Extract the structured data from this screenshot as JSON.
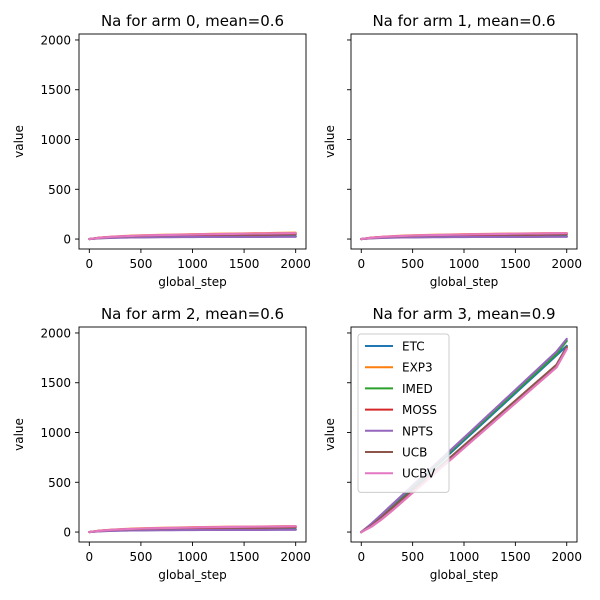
{
  "colors": {
    "ETC": "#1f77b4",
    "EXP3": "#ff7f0e",
    "IMED": "#2ca02c",
    "MOSS": "#d62728",
    "NPTS": "#9467bd",
    "UCB": "#8c564b",
    "UCBV": "#e377c2"
  },
  "chart_data": [
    {
      "type": "line",
      "title": "Na for arm 0, mean=0.6",
      "xlabel": "global_step",
      "ylabel": "value",
      "xlim": [
        -100,
        2100
      ],
      "ylim": [
        -100,
        2060
      ],
      "xticks": [
        0,
        500,
        1000,
        1500,
        2000
      ],
      "yticks": [
        0,
        500,
        1000,
        1500,
        2000
      ],
      "show_ytick_labels": true,
      "grid": false,
      "legend": null,
      "x": [
        0,
        100,
        200,
        300,
        400,
        500,
        600,
        700,
        800,
        900,
        1000,
        1100,
        1200,
        1300,
        1400,
        1500,
        1600,
        1700,
        1800,
        1900,
        2000
      ],
      "series": [
        {
          "name": "ETC",
          "values": [
            0,
            10,
            15,
            18,
            20,
            22,
            23,
            24,
            25,
            25,
            26,
            26,
            27,
            27,
            27,
            28,
            28,
            28,
            29,
            29,
            29
          ]
        },
        {
          "name": "EXP3",
          "values": [
            0,
            14,
            22,
            28,
            33,
            37,
            40,
            42,
            44,
            46,
            48,
            50,
            52,
            53,
            55,
            56,
            58,
            59,
            61,
            62,
            64
          ]
        },
        {
          "name": "IMED",
          "values": [
            0,
            9,
            13,
            16,
            18,
            19,
            20,
            21,
            22,
            22,
            23,
            23,
            24,
            24,
            24,
            25,
            25,
            25,
            25,
            26,
            26
          ]
        },
        {
          "name": "MOSS",
          "values": [
            0,
            12,
            19,
            24,
            28,
            31,
            33,
            35,
            37,
            38,
            40,
            41,
            42,
            43,
            44,
            45,
            46,
            47,
            48,
            49,
            50
          ]
        },
        {
          "name": "NPTS",
          "values": [
            0,
            8,
            12,
            14,
            16,
            17,
            18,
            19,
            19,
            20,
            20,
            21,
            21,
            21,
            22,
            22,
            22,
            22,
            23,
            23,
            23
          ]
        },
        {
          "name": "UCB",
          "values": [
            0,
            13,
            20,
            25,
            29,
            32,
            35,
            37,
            39,
            41,
            43,
            44,
            46,
            47,
            48,
            49,
            50,
            51,
            52,
            53,
            54
          ]
        },
        {
          "name": "UCBV",
          "values": [
            0,
            13,
            21,
            27,
            31,
            35,
            38,
            40,
            42,
            44,
            46,
            48,
            49,
            51,
            52,
            54,
            55,
            56,
            57,
            58,
            59
          ]
        }
      ]
    },
    {
      "type": "line",
      "title": "Na for arm 1, mean=0.6",
      "xlabel": "global_step",
      "ylabel": "value",
      "xlim": [
        -100,
        2100
      ],
      "ylim": [
        -100,
        2060
      ],
      "xticks": [
        0,
        500,
        1000,
        1500,
        2000
      ],
      "yticks": [
        0,
        500,
        1000,
        1500,
        2000
      ],
      "show_ytick_labels": false,
      "grid": false,
      "legend": null,
      "x": [
        0,
        100,
        200,
        300,
        400,
        500,
        600,
        700,
        800,
        900,
        1000,
        1100,
        1200,
        1300,
        1400,
        1500,
        1600,
        1700,
        1800,
        1900,
        2000
      ],
      "series": [
        {
          "name": "ETC",
          "values": [
            0,
            10,
            15,
            18,
            20,
            22,
            23,
            24,
            25,
            25,
            26,
            26,
            27,
            27,
            27,
            28,
            28,
            28,
            29,
            29,
            29
          ]
        },
        {
          "name": "EXP3",
          "values": [
            0,
            14,
            22,
            28,
            33,
            37,
            40,
            42,
            44,
            46,
            48,
            50,
            51,
            52,
            54,
            55,
            56,
            57,
            58,
            59,
            60
          ]
        },
        {
          "name": "IMED",
          "values": [
            0,
            9,
            13,
            16,
            18,
            19,
            20,
            21,
            22,
            22,
            23,
            23,
            24,
            24,
            24,
            25,
            25,
            25,
            25,
            26,
            26
          ]
        },
        {
          "name": "MOSS",
          "values": [
            0,
            12,
            19,
            24,
            28,
            31,
            33,
            35,
            37,
            38,
            40,
            41,
            42,
            43,
            44,
            45,
            46,
            47,
            48,
            49,
            50
          ]
        },
        {
          "name": "NPTS",
          "values": [
            0,
            8,
            12,
            14,
            16,
            17,
            18,
            19,
            19,
            20,
            20,
            21,
            21,
            21,
            22,
            22,
            22,
            22,
            23,
            23,
            23
          ]
        },
        {
          "name": "UCB",
          "values": [
            0,
            13,
            20,
            25,
            29,
            32,
            35,
            37,
            39,
            41,
            43,
            44,
            46,
            47,
            48,
            49,
            50,
            51,
            52,
            53,
            54
          ]
        },
        {
          "name": "UCBV",
          "values": [
            0,
            13,
            21,
            27,
            31,
            35,
            38,
            40,
            42,
            44,
            46,
            48,
            49,
            51,
            52,
            54,
            55,
            56,
            57,
            58,
            59
          ]
        }
      ]
    },
    {
      "type": "line",
      "title": "Na for arm 2, mean=0.6",
      "xlabel": "global_step",
      "ylabel": "value",
      "xlim": [
        -100,
        2100
      ],
      "ylim": [
        -100,
        2060
      ],
      "xticks": [
        0,
        500,
        1000,
        1500,
        2000
      ],
      "yticks": [
        0,
        500,
        1000,
        1500,
        2000
      ],
      "show_ytick_labels": true,
      "grid": false,
      "legend": null,
      "x": [
        0,
        100,
        200,
        300,
        400,
        500,
        600,
        700,
        800,
        900,
        1000,
        1100,
        1200,
        1300,
        1400,
        1500,
        1600,
        1700,
        1800,
        1900,
        2000
      ],
      "series": [
        {
          "name": "ETC",
          "values": [
            0,
            10,
            15,
            18,
            20,
            22,
            23,
            24,
            25,
            25,
            26,
            26,
            27,
            27,
            27,
            28,
            28,
            28,
            29,
            29,
            29
          ]
        },
        {
          "name": "EXP3",
          "values": [
            0,
            14,
            22,
            28,
            33,
            37,
            40,
            42,
            44,
            46,
            48,
            50,
            51,
            52,
            53,
            54,
            55,
            56,
            57,
            58,
            58
          ]
        },
        {
          "name": "IMED",
          "values": [
            0,
            9,
            13,
            16,
            18,
            19,
            20,
            21,
            22,
            22,
            23,
            23,
            24,
            24,
            24,
            25,
            25,
            25,
            25,
            26,
            26
          ]
        },
        {
          "name": "MOSS",
          "values": [
            0,
            12,
            19,
            24,
            28,
            31,
            33,
            35,
            37,
            38,
            40,
            41,
            42,
            43,
            44,
            45,
            46,
            47,
            48,
            49,
            50
          ]
        },
        {
          "name": "NPTS",
          "values": [
            0,
            8,
            12,
            14,
            16,
            17,
            18,
            19,
            19,
            20,
            20,
            21,
            21,
            21,
            22,
            22,
            22,
            22,
            23,
            23,
            23
          ]
        },
        {
          "name": "UCB",
          "values": [
            0,
            13,
            20,
            25,
            29,
            32,
            35,
            37,
            39,
            41,
            43,
            44,
            46,
            47,
            48,
            49,
            50,
            51,
            52,
            53,
            54
          ]
        },
        {
          "name": "UCBV",
          "values": [
            0,
            13,
            21,
            27,
            31,
            35,
            38,
            40,
            42,
            44,
            46,
            48,
            49,
            51,
            52,
            53,
            54,
            55,
            56,
            57,
            58
          ]
        }
      ]
    },
    {
      "type": "line",
      "title": "Na for arm 3, mean=0.9",
      "xlabel": "global_step",
      "ylabel": "value",
      "xlim": [
        -100,
        2100
      ],
      "ylim": [
        -100,
        2060
      ],
      "xticks": [
        0,
        500,
        1000,
        1500,
        2000
      ],
      "yticks": [
        0,
        500,
        1000,
        1500,
        2000
      ],
      "show_ytick_labels": false,
      "grid": false,
      "legend": "upper left",
      "x": [
        0,
        100,
        200,
        300,
        400,
        500,
        600,
        700,
        800,
        900,
        1000,
        1100,
        1200,
        1300,
        1400,
        1500,
        1600,
        1700,
        1800,
        1900,
        2000
      ],
      "series": [
        {
          "name": "ETC",
          "values": [
            0,
            70,
            160,
            255,
            350,
            445,
            540,
            635,
            730,
            825,
            920,
            1015,
            1110,
            1205,
            1300,
            1395,
            1490,
            1585,
            1680,
            1775,
            1870
          ]
        },
        {
          "name": "EXP3",
          "values": [
            0,
            55,
            130,
            215,
            305,
            395,
            485,
            575,
            665,
            755,
            845,
            935,
            1025,
            1115,
            1205,
            1295,
            1385,
            1475,
            1565,
            1655,
            1840
          ]
        },
        {
          "name": "IMED",
          "values": [
            0,
            80,
            175,
            270,
            365,
            460,
            555,
            650,
            745,
            840,
            935,
            1030,
            1125,
            1220,
            1315,
            1410,
            1505,
            1600,
            1695,
            1790,
            1920
          ]
        },
        {
          "name": "MOSS",
          "values": [
            0,
            60,
            140,
            225,
            315,
            405,
            495,
            585,
            675,
            765,
            855,
            945,
            1035,
            1125,
            1215,
            1305,
            1395,
            1485,
            1575,
            1665,
            1855
          ]
        },
        {
          "name": "NPTS",
          "values": [
            0,
            85,
            180,
            276,
            372,
            468,
            564,
            660,
            756,
            852,
            948,
            1044,
            1140,
            1236,
            1332,
            1428,
            1524,
            1620,
            1716,
            1812,
            1940
          ]
        },
        {
          "name": "UCB",
          "values": [
            0,
            65,
            150,
            240,
            330,
            420,
            510,
            600,
            690,
            780,
            870,
            960,
            1050,
            1140,
            1230,
            1320,
            1410,
            1500,
            1590,
            1680,
            1860
          ]
        },
        {
          "name": "UCBV",
          "values": [
            0,
            55,
            130,
            215,
            305,
            395,
            485,
            575,
            665,
            755,
            845,
            935,
            1025,
            1115,
            1205,
            1295,
            1385,
            1475,
            1565,
            1655,
            1838
          ]
        }
      ]
    }
  ]
}
